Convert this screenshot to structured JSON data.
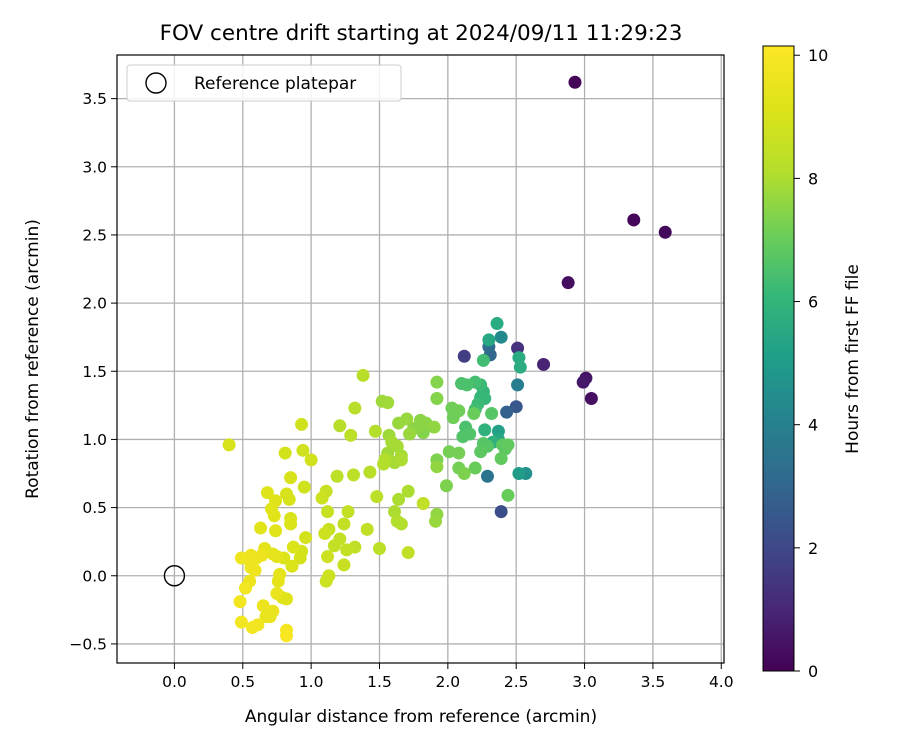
{
  "chart_data": {
    "type": "scatter",
    "title": "FOV centre drift starting at 2024/09/11 11:29:23",
    "xlabel": "Angular distance from reference (arcmin)",
    "ylabel": "Rotation from reference (arcmin)",
    "xlim": [
      -0.42,
      4.02
    ],
    "ylim": [
      -0.64,
      3.82
    ],
    "xticks": [
      0.0,
      0.5,
      1.0,
      1.5,
      2.0,
      2.5,
      3.0,
      3.5,
      4.0
    ],
    "xtick_labels": [
      "0.0",
      "0.5",
      "1.0",
      "1.5",
      "2.0",
      "2.5",
      "3.0",
      "3.5",
      "4.0"
    ],
    "yticks": [
      -0.5,
      0.0,
      0.5,
      1.0,
      1.5,
      2.0,
      2.5,
      3.0,
      3.5
    ],
    "ytick_labels": [
      "−0.5",
      "0.0",
      "0.5",
      "1.0",
      "1.5",
      "2.0",
      "2.5",
      "3.0",
      "3.5"
    ],
    "grid": true,
    "legend": {
      "placement": "upper-left",
      "entries": [
        "Reference platepar"
      ]
    },
    "reference_point": {
      "x": 0.0,
      "y": 0.0,
      "label": "Reference platepar"
    },
    "colorbar": {
      "label": "Hours from first FF file",
      "colormap": "viridis",
      "range": [
        0,
        10.15
      ],
      "ticks": [
        0,
        2,
        4,
        6,
        8,
        10
      ],
      "tick_labels": [
        "0",
        "2",
        "4",
        "6",
        "8",
        "10"
      ]
    },
    "points": [
      [
        2.93,
        3.62,
        0.1
      ],
      [
        3.36,
        2.61,
        0.15
      ],
      [
        3.59,
        2.52,
        0.2
      ],
      [
        2.88,
        2.15,
        0.3
      ],
      [
        3.01,
        1.45,
        0.5
      ],
      [
        2.99,
        1.42,
        0.6
      ],
      [
        3.05,
        1.3,
        0.4
      ],
      [
        2.7,
        1.55,
        0.9
      ],
      [
        2.51,
        1.67,
        1.3
      ],
      [
        2.12,
        1.61,
        1.7
      ],
      [
        2.39,
        0.47,
        2.2
      ],
      [
        2.5,
        1.24,
        2.5
      ],
      [
        2.43,
        1.2,
        2.8
      ],
      [
        2.31,
        1.62,
        3.0
      ],
      [
        2.3,
        1.68,
        3.2
      ],
      [
        2.29,
        0.73,
        3.5
      ],
      [
        2.51,
        1.4,
        3.9
      ],
      [
        2.39,
        1.75,
        4.3
      ],
      [
        2.57,
        0.75,
        4.6
      ],
      [
        2.52,
        0.75,
        5.0
      ],
      [
        2.37,
        1.06,
        5.2
      ],
      [
        2.37,
        1.0,
        5.4
      ],
      [
        2.3,
        1.73,
        5.5
      ],
      [
        2.36,
        1.85,
        5.6
      ],
      [
        2.52,
        1.6,
        5.6
      ],
      [
        2.53,
        1.53,
        5.7
      ],
      [
        2.33,
        0.98,
        5.8
      ],
      [
        2.27,
        1.07,
        5.9
      ],
      [
        2.26,
        1.35,
        6.0
      ],
      [
        2.24,
        1.31,
        6.1
      ],
      [
        2.27,
        1.3,
        6.1
      ],
      [
        2.24,
        1.4,
        6.2
      ],
      [
        2.22,
        1.26,
        6.2
      ],
      [
        2.2,
        1.22,
        6.3
      ],
      [
        2.26,
        1.58,
        6.3
      ],
      [
        2.2,
        1.42,
        6.4
      ],
      [
        2.14,
        1.4,
        6.5
      ],
      [
        2.1,
        1.41,
        6.5
      ],
      [
        2.13,
        1.09,
        6.5
      ],
      [
        2.11,
        1.02,
        6.6
      ],
      [
        2.16,
        1.04,
        6.6
      ],
      [
        2.32,
        1.19,
        6.7
      ],
      [
        2.26,
        0.97,
        6.7
      ],
      [
        2.29,
        0.95,
        6.7
      ],
      [
        2.24,
        0.91,
        6.8
      ],
      [
        2.4,
        0.96,
        6.8
      ],
      [
        2.42,
        0.93,
        6.8
      ],
      [
        2.44,
        0.96,
        6.9
      ],
      [
        2.39,
        0.86,
        6.9
      ],
      [
        2.44,
        0.59,
        7.0
      ],
      [
        2.2,
        0.79,
        7.0
      ],
      [
        2.19,
        1.19,
        7.0
      ],
      [
        2.03,
        1.23,
        7.1
      ],
      [
        2.08,
        1.21,
        7.1
      ],
      [
        2.04,
        1.16,
        7.1
      ],
      [
        2.08,
        0.9,
        7.2
      ],
      [
        2.01,
        0.91,
        7.2
      ],
      [
        2.08,
        0.79,
        7.2
      ],
      [
        2.12,
        0.75,
        7.3
      ],
      [
        1.92,
        0.85,
        7.3
      ],
      [
        1.99,
        0.66,
        7.3
      ],
      [
        1.92,
        1.42,
        7.4
      ],
      [
        1.92,
        1.3,
        7.4
      ],
      [
        1.82,
        1.05,
        7.4
      ],
      [
        1.8,
        1.14,
        7.5
      ],
      [
        1.79,
        1.1,
        7.5
      ],
      [
        1.75,
        1.08,
        7.5
      ],
      [
        1.84,
        1.12,
        7.5
      ],
      [
        1.92,
        0.8,
        7.6
      ],
      [
        1.92,
        0.45,
        7.6
      ],
      [
        1.9,
        1.09,
        7.6
      ],
      [
        1.91,
        0.4,
        7.7
      ],
      [
        1.72,
        1.04,
        7.7
      ],
      [
        1.7,
        1.15,
        7.7
      ],
      [
        1.64,
        1.12,
        7.7
      ],
      [
        1.56,
        0.9,
        7.8
      ],
      [
        1.56,
        1.27,
        7.8
      ],
      [
        1.52,
        1.28,
        7.8
      ],
      [
        1.57,
        1.03,
        7.8
      ],
      [
        1.63,
        0.95,
        7.9
      ],
      [
        1.59,
        0.98,
        7.9
      ],
      [
        1.61,
        0.83,
        7.9
      ],
      [
        1.66,
        0.88,
        7.9
      ],
      [
        1.66,
        0.85,
        8.0
      ],
      [
        1.71,
        0.62,
        8.0
      ],
      [
        1.64,
        0.56,
        8.0
      ],
      [
        1.61,
        0.47,
        8.0
      ],
      [
        1.63,
        0.4,
        8.1
      ],
      [
        1.66,
        0.38,
        8.1
      ],
      [
        1.54,
        0.85,
        8.1
      ],
      [
        1.53,
        0.82,
        8.1
      ],
      [
        1.47,
        1.06,
        8.1
      ],
      [
        1.43,
        0.76,
        8.2
      ],
      [
        1.38,
        1.47,
        8.2
      ],
      [
        1.32,
        1.23,
        8.2
      ],
      [
        1.21,
        1.1,
        8.2
      ],
      [
        1.29,
        1.03,
        8.3
      ],
      [
        1.31,
        0.74,
        8.3
      ],
      [
        1.19,
        0.73,
        8.3
      ],
      [
        1.48,
        0.58,
        8.3
      ],
      [
        1.5,
        0.2,
        8.3
      ],
      [
        1.71,
        0.17,
        8.4
      ],
      [
        1.82,
        0.53,
        8.4
      ],
      [
        1.41,
        0.34,
        8.4
      ],
      [
        1.32,
        0.21,
        8.4
      ],
      [
        1.27,
        0.47,
        8.5
      ],
      [
        1.24,
        0.38,
        8.5
      ],
      [
        1.21,
        0.27,
        8.5
      ],
      [
        1.17,
        0.22,
        8.5
      ],
      [
        1.26,
        0.19,
        8.5
      ],
      [
        1.24,
        0.08,
        8.6
      ],
      [
        1.13,
        0.34,
        8.6
      ],
      [
        1.12,
        0.47,
        8.6
      ],
      [
        1.11,
        0.62,
        8.6
      ],
      [
        1.08,
        0.57,
        8.7
      ],
      [
        1.1,
        0.31,
        8.7
      ],
      [
        1.12,
        0.14,
        8.7
      ],
      [
        1.13,
        0.0,
        8.7
      ],
      [
        1.11,
        -0.04,
        8.7
      ],
      [
        1.0,
        0.85,
        8.8
      ],
      [
        0.93,
        1.11,
        8.8
      ],
      [
        0.94,
        0.92,
        8.8
      ],
      [
        0.95,
        0.65,
        8.8
      ],
      [
        0.96,
        0.28,
        8.9
      ],
      [
        0.93,
        0.18,
        8.9
      ],
      [
        0.92,
        0.13,
        8.9
      ],
      [
        0.81,
        0.9,
        8.9
      ],
      [
        0.85,
        0.72,
        9.0
      ],
      [
        0.82,
        0.6,
        9.0
      ],
      [
        0.84,
        0.56,
        9.0
      ],
      [
        0.85,
        0.42,
        9.0
      ],
      [
        0.85,
        0.38,
        9.1
      ],
      [
        0.87,
        0.21,
        9.1
      ],
      [
        0.86,
        0.07,
        9.1
      ],
      [
        0.8,
        0.13,
        9.1
      ],
      [
        0.79,
        -0.16,
        9.2
      ],
      [
        0.82,
        -0.17,
        9.2
      ],
      [
        0.74,
        0.55,
        9.2
      ],
      [
        0.68,
        0.61,
        9.2
      ],
      [
        0.71,
        0.49,
        9.3
      ],
      [
        0.74,
        0.33,
        9.3
      ],
      [
        0.73,
        0.44,
        9.3
      ],
      [
        0.63,
        0.35,
        9.3
      ],
      [
        0.66,
        0.2,
        9.4
      ],
      [
        0.72,
        0.16,
        9.4
      ],
      [
        0.75,
        0.14,
        9.4
      ],
      [
        0.77,
        0.01,
        9.4
      ],
      [
        0.76,
        -0.04,
        9.4
      ],
      [
        0.75,
        -0.13,
        9.5
      ],
      [
        0.72,
        -0.26,
        9.5
      ],
      [
        0.7,
        -0.3,
        9.5
      ],
      [
        0.67,
        -0.3,
        9.5
      ],
      [
        0.65,
        -0.22,
        9.6
      ],
      [
        0.64,
        0.15,
        9.6
      ],
      [
        0.6,
        0.13,
        9.6
      ],
      [
        0.56,
        0.15,
        9.6
      ],
      [
        0.56,
        0.06,
        9.6
      ],
      [
        0.59,
        0.04,
        9.7
      ],
      [
        0.55,
        -0.04,
        9.7
      ],
      [
        0.54,
        0.12,
        9.7
      ],
      [
        0.49,
        0.13,
        9.7
      ],
      [
        0.52,
        -0.09,
        9.8
      ],
      [
        0.48,
        -0.19,
        9.8
      ],
      [
        0.49,
        -0.34,
        9.8
      ],
      [
        0.57,
        -0.38,
        9.8
      ],
      [
        0.61,
        -0.36,
        9.8
      ],
      [
        0.82,
        -0.4,
        9.9
      ],
      [
        0.82,
        -0.44,
        10.0
      ],
      [
        0.4,
        0.96,
        9.0
      ]
    ]
  }
}
